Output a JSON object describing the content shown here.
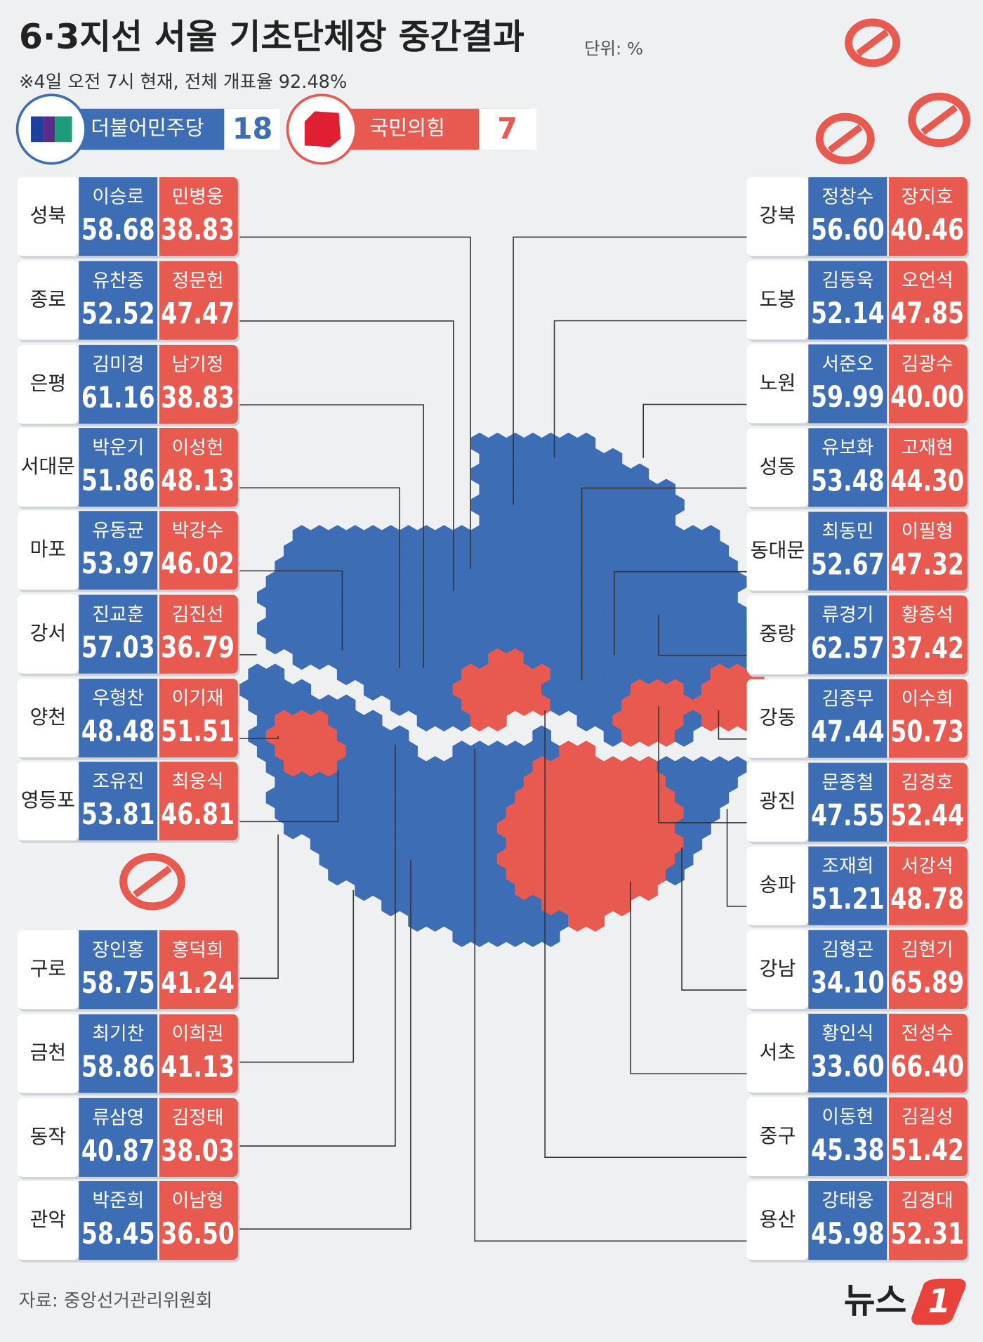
{
  "header": {
    "title": "6·3지선 서울 기초단체장 중간결과",
    "unit": "단위: %",
    "note": "※4일 오전 7시 현재, 전체 개표율 92.48%"
  },
  "legend": [
    {
      "party": "더불어민주당",
      "seats": 18
    },
    {
      "party": "국민의힘",
      "seats": 7
    }
  ],
  "districts": [
    {
      "name": "성북",
      "dem_candidate": "이승로",
      "dem_value": "58.68",
      "ppp_candidate": "민병웅",
      "ppp_value": "38.83"
    },
    {
      "name": "종로",
      "dem_candidate": "유찬종",
      "dem_value": "52.52",
      "ppp_candidate": "정문헌",
      "ppp_value": "47.47"
    },
    {
      "name": "은평",
      "dem_candidate": "김미경",
      "dem_value": "61.16",
      "ppp_candidate": "남기정",
      "ppp_value": "38.83"
    },
    {
      "name": "서대문",
      "dem_candidate": "박운기",
      "dem_value": "51.86",
      "ppp_candidate": "이성헌",
      "ppp_value": "48.13"
    },
    {
      "name": "마포",
      "dem_candidate": "유동균",
      "dem_value": "53.97",
      "ppp_candidate": "박강수",
      "ppp_value": "46.02"
    },
    {
      "name": "강서",
      "dem_candidate": "진교훈",
      "dem_value": "57.03",
      "ppp_candidate": "김진선",
      "ppp_value": "36.79"
    },
    {
      "name": "양천",
      "dem_candidate": "우형찬",
      "dem_value": "48.48",
      "ppp_candidate": "이기재",
      "ppp_value": "51.51"
    },
    {
      "name": "영등포",
      "dem_candidate": "조유진",
      "dem_value": "53.81",
      "ppp_candidate": "최웅식",
      "ppp_value": "46.81"
    },
    {
      "name": "구로",
      "dem_candidate": "장인홍",
      "dem_value": "58.75",
      "ppp_candidate": "홍덕희",
      "ppp_value": "41.24"
    },
    {
      "name": "금천",
      "dem_candidate": "최기찬",
      "dem_value": "58.86",
      "ppp_candidate": "이희권",
      "ppp_value": "41.13"
    },
    {
      "name": "동작",
      "dem_candidate": "류삼영",
      "dem_value": "40.87",
      "ppp_candidate": "김정태",
      "ppp_value": "38.03"
    },
    {
      "name": "관악",
      "dem_candidate": "박준희",
      "dem_value": "58.45",
      "ppp_candidate": "이남형",
      "ppp_value": "36.50"
    },
    {
      "name": "강북",
      "dem_candidate": "정창수",
      "dem_value": "56.60",
      "ppp_candidate": "장지호",
      "ppp_value": "40.46"
    },
    {
      "name": "도봉",
      "dem_candidate": "김동욱",
      "dem_value": "52.14",
      "ppp_candidate": "오언석",
      "ppp_value": "47.85"
    },
    {
      "name": "노원",
      "dem_candidate": "서준오",
      "dem_value": "59.99",
      "ppp_candidate": "김광수",
      "ppp_value": "40.00"
    },
    {
      "name": "성동",
      "dem_candidate": "유보화",
      "dem_value": "53.48",
      "ppp_candidate": "고재현",
      "ppp_value": "44.30"
    },
    {
      "name": "동대문",
      "dem_candidate": "최동민",
      "dem_value": "52.67",
      "ppp_candidate": "이필형",
      "ppp_value": "47.32"
    },
    {
      "name": "중랑",
      "dem_candidate": "류경기",
      "dem_value": "62.57",
      "ppp_candidate": "황종석",
      "ppp_value": "37.42"
    },
    {
      "name": "강동",
      "dem_candidate": "김종무",
      "dem_value": "47.44",
      "ppp_candidate": "이수희",
      "ppp_value": "50.73"
    },
    {
      "name": "광진",
      "dem_candidate": "문종철",
      "dem_value": "47.55",
      "ppp_candidate": "김경호",
      "ppp_value": "52.44"
    },
    {
      "name": "송파",
      "dem_candidate": "조재희",
      "dem_value": "51.21",
      "ppp_candidate": "서강석",
      "ppp_value": "48.78"
    },
    {
      "name": "강남",
      "dem_candidate": "김형곤",
      "dem_value": "34.10",
      "ppp_candidate": "김현기",
      "ppp_value": "65.89"
    },
    {
      "name": "서초",
      "dem_candidate": "황인식",
      "dem_value": "33.60",
      "ppp_candidate": "전성수",
      "ppp_value": "66.40"
    },
    {
      "name": "중구",
      "dem_candidate": "이동현",
      "dem_value": "45.38",
      "ppp_candidate": "김길성",
      "ppp_value": "51.42"
    },
    {
      "name": "용산",
      "dem_candidate": "강태웅",
      "dem_value": "45.98",
      "ppp_candidate": "김경대",
      "ppp_value": "52.31"
    }
  ],
  "footer": {
    "source": "자료: 중앙선거관리위원회",
    "logo": "뉴스",
    "logo_mark": "1"
  }
}
